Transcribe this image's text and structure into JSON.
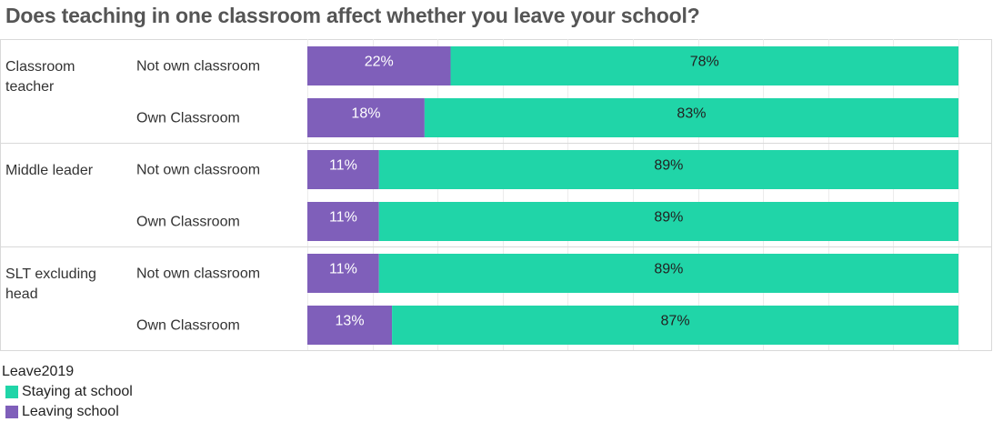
{
  "chart_data": {
    "type": "bar",
    "stacked": true,
    "orientation": "horizontal",
    "title": "Does teaching in one classroom affect whether you leave your school?",
    "groups": [
      {
        "label": "Classroom teacher",
        "rows": [
          {
            "label": "Not own classroom",
            "leaving": 22,
            "staying": 78,
            "leaving_label": "22%",
            "staying_label": "78%"
          },
          {
            "label": "Own Classroom",
            "leaving": 18,
            "staying": 83,
            "leaving_label": "18%",
            "staying_label": "83%"
          }
        ]
      },
      {
        "label": "Middle leader",
        "rows": [
          {
            "label": "Not own classroom",
            "leaving": 11,
            "staying": 89,
            "leaving_label": "11%",
            "staying_label": "89%"
          },
          {
            "label": "Own Classroom",
            "leaving": 11,
            "staying": 89,
            "leaving_label": "11%",
            "staying_label": "89%"
          }
        ]
      },
      {
        "label": "SLT excluding head",
        "rows": [
          {
            "label": "Not own classroom",
            "leaving": 11,
            "staying": 89,
            "leaving_label": "11%",
            "staying_label": "89%"
          },
          {
            "label": "Own Classroom",
            "leaving": 13,
            "staying": 87,
            "leaving_label": "13%",
            "staying_label": "87%"
          }
        ]
      }
    ],
    "legend": {
      "title": "Leave2019",
      "items": [
        {
          "key": "staying",
          "label": "Staying at school",
          "color": "#20d5a8"
        },
        {
          "key": "leaving",
          "label": "Leaving school",
          "color": "#7f5fba"
        }
      ]
    },
    "xlim": [
      0,
      100
    ],
    "grid": true
  }
}
